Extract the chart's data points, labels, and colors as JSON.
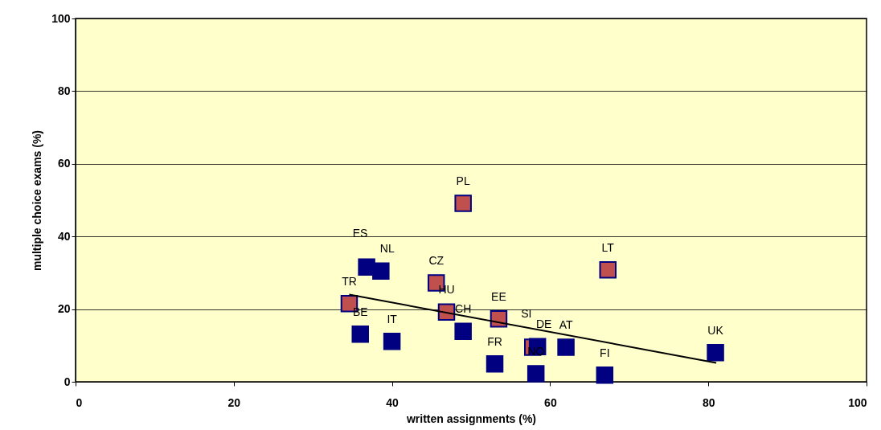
{
  "chart_data": {
    "type": "scatter",
    "xlabel": "written assignments (%)",
    "ylabel": "multiple choice exams (%)",
    "xlim": [
      0,
      100
    ],
    "ylim": [
      0,
      100
    ],
    "xticks": [
      0,
      20,
      40,
      60,
      80,
      100
    ],
    "yticks": [
      0,
      20,
      40,
      60,
      80,
      100
    ],
    "grid": "y",
    "series": [
      {
        "marker": "square",
        "color": "#c0504d",
        "x": [
          34.6,
          45.6,
          46.9,
          49.0,
          53.5,
          67.3,
          57.8
        ],
        "values": [
          21.5,
          27.2,
          19.2,
          49.1,
          17.3,
          30.8,
          9.5
        ]
      },
      {
        "marker": "square",
        "color": "#000080",
        "x": [
          36.8,
          38.6,
          36.0,
          40.0,
          49.0,
          53.0,
          58.4,
          58.2,
          62.0,
          66.9,
          80.9
        ],
        "values": [
          31.6,
          30.5,
          13.1,
          11.1,
          13.9,
          4.9,
          9.7,
          2.2,
          9.5,
          1.8,
          8.0
        ]
      },
      {
        "type": "line",
        "marker": "none",
        "color": "#000000",
        "x": [
          34.6,
          81.0
        ],
        "values": [
          24.0,
          5.2
        ]
      }
    ],
    "annotations": [
      {
        "text": "TR",
        "x": 34.6,
        "y": 21.5
      },
      {
        "text": "CZ",
        "x": 45.6,
        "y": 27.2
      },
      {
        "text": "HU",
        "x": 46.9,
        "y": 19.2
      },
      {
        "text": "PL",
        "x": 49.0,
        "y": 49.1
      },
      {
        "text": "EE",
        "x": 53.5,
        "y": 17.3
      },
      {
        "text": "LT",
        "x": 67.3,
        "y": 30.8
      },
      {
        "text": "SI",
        "x": 57.8,
        "y": 9.5
      },
      {
        "text": "ES",
        "x": 36.8,
        "y": 31.6
      },
      {
        "text": "NL",
        "x": 38.6,
        "y": 30.5
      },
      {
        "text": "BE",
        "x": 36.0,
        "y": 13.1
      },
      {
        "text": "IT",
        "x": 40.0,
        "y": 11.1
      },
      {
        "text": "CH",
        "x": 49.0,
        "y": 13.9
      },
      {
        "text": "FR",
        "x": 53.0,
        "y": 4.9
      },
      {
        "text": "DE",
        "x": 58.4,
        "y": 9.7
      },
      {
        "text": "NO",
        "x": 58.2,
        "y": 2.2
      },
      {
        "text": "AT",
        "x": 62.0,
        "y": 9.5
      },
      {
        "text": "FI",
        "x": 66.9,
        "y": 1.8
      },
      {
        "text": "UK",
        "x": 80.9,
        "y": 8.0
      }
    ]
  }
}
